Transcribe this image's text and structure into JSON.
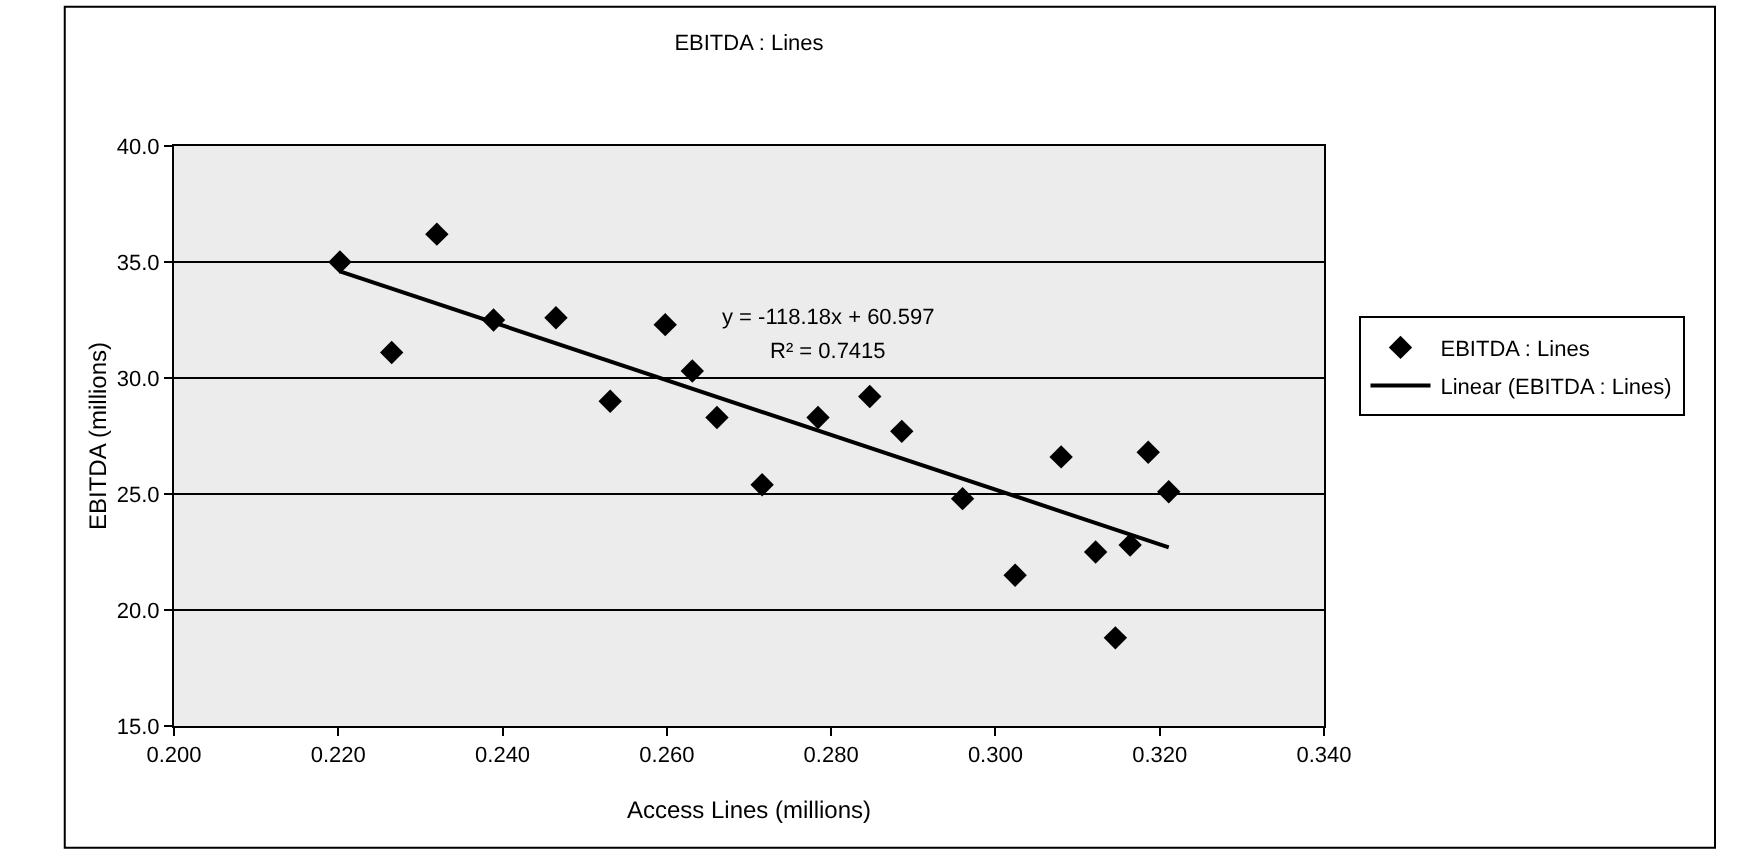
{
  "chart_data": {
    "type": "scatter",
    "title": "EBITDA : Lines",
    "xlabel": "Access Lines (millions)",
    "ylabel": "EBITDA (millions)",
    "series": [
      {
        "name": "EBITDA : Lines",
        "type": "scatter",
        "color": "#000000",
        "marker": "diamond",
        "x": [
          0.2202,
          0.232,
          0.2265,
          0.2389,
          0.2465,
          0.2531,
          0.2598,
          0.2631,
          0.2661,
          0.2716,
          0.2784,
          0.2847,
          0.2886,
          0.296,
          0.3024,
          0.308,
          0.3122,
          0.3146,
          0.3164,
          0.3186,
          0.3211
        ],
        "values": [
          35.0,
          36.2,
          31.1,
          32.5,
          32.6,
          29.0,
          32.3,
          30.3,
          28.3,
          25.4,
          28.3,
          29.2,
          27.7,
          24.8,
          21.5,
          26.6,
          22.5,
          18.8,
          22.8,
          26.8,
          25.1
        ]
      },
      {
        "name": "Linear (EBITDA : Lines)",
        "type": "line",
        "color": "#000000",
        "line_style": "solid",
        "x": [
          0.2202,
          0.3211
        ],
        "values": [
          34.6,
          22.7
        ]
      }
    ],
    "annotations": [
      "y = -118.18x + 60.597",
      "R² = 0.7415"
    ],
    "xlim": [
      0.2,
      0.34
    ],
    "xticks": [
      {
        "value": 0.2,
        "label": "0.200"
      },
      {
        "value": 0.22,
        "label": "0.220"
      },
      {
        "value": 0.24,
        "label": "0.240"
      },
      {
        "value": 0.26,
        "label": "0.260"
      },
      {
        "value": 0.28,
        "label": "0.280"
      },
      {
        "value": 0.3,
        "label": "0.300"
      },
      {
        "value": 0.32,
        "label": "0.320"
      },
      {
        "value": 0.34,
        "label": "0.340"
      }
    ],
    "ylim": [
      15,
      40
    ],
    "yticks": [
      {
        "value": 15,
        "label": "15.0"
      },
      {
        "value": 20,
        "label": "20.0"
      },
      {
        "value": 25,
        "label": "25.0"
      },
      {
        "value": 30,
        "label": "30.0"
      },
      {
        "value": 35,
        "label": "35.0"
      },
      {
        "value": 40,
        "label": "40.0"
      }
    ],
    "grid": "y",
    "legend": "right"
  }
}
